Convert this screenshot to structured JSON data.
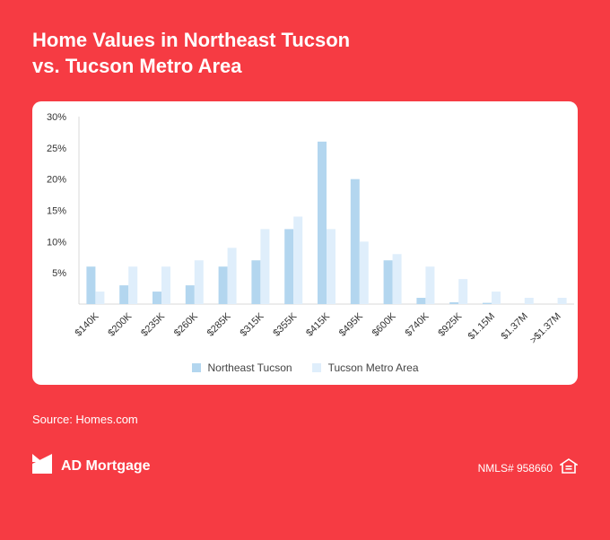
{
  "header": {
    "title_line1": "Home Values in Northeast Tucson",
    "title_line2": "vs. Tucson Metro Area"
  },
  "chart_data": {
    "type": "bar",
    "title": "Home Values in Northeast Tucson vs. Tucson Metro Area",
    "categories": [
      "$140K",
      "$200K",
      "$235K",
      "$260K",
      "$285K",
      "$315K",
      "$355K",
      "$415K",
      "$495K",
      "$600K",
      "$740K",
      "$925K",
      "$1.15M",
      "$1.37M",
      ">$1.37M"
    ],
    "series": [
      {
        "name": "Northeast Tucson",
        "color": "#b3d6ef",
        "values": [
          6,
          3,
          2,
          3,
          6,
          7,
          12,
          26,
          20,
          7,
          1,
          0.3,
          0.2,
          0,
          0
        ]
      },
      {
        "name": "Tucson Metro Area",
        "color": "#dfeefb",
        "values": [
          2,
          6,
          6,
          7,
          9,
          12,
          14,
          12,
          10,
          8,
          6,
          4,
          2,
          1,
          1
        ]
      }
    ],
    "yticks": [
      "5%",
      "10%",
      "15%",
      "20%",
      "25%",
      "30%"
    ],
    "ylim": [
      0,
      30
    ],
    "grid": false,
    "legend": "bottom"
  },
  "source": "Source: Homes.com",
  "footer": {
    "brand": "AD Mortgage",
    "nmls": "NMLS# 958660",
    "logo_icon": "ad-mortgage-logo-icon",
    "housing_icon": "equal-housing-icon"
  }
}
